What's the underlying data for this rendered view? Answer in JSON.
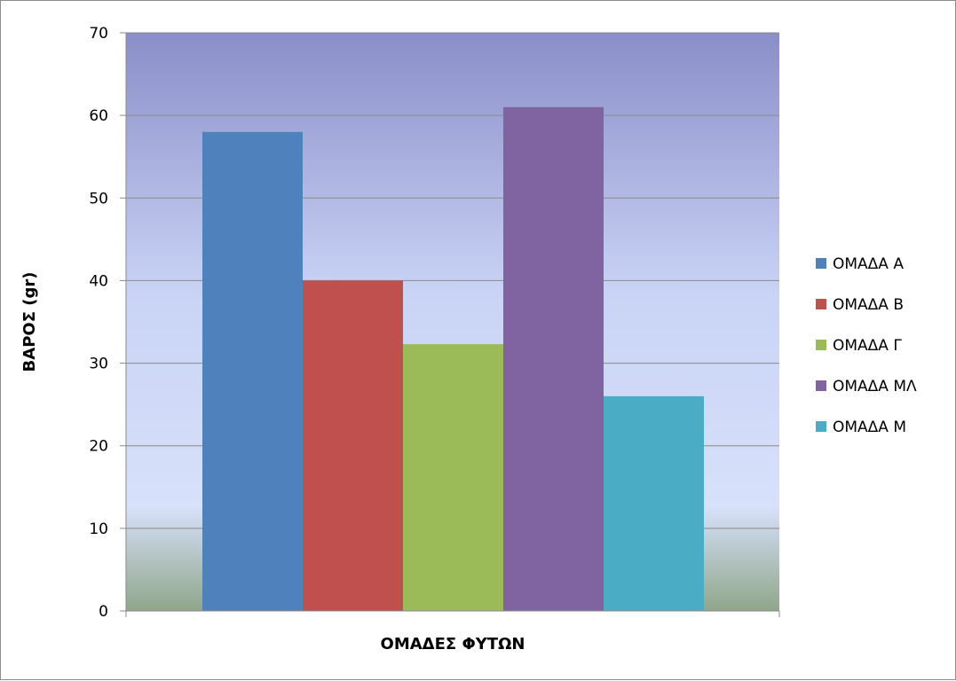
{
  "chart_data": {
    "type": "bar",
    "title": "",
    "xlabel": "ΟΜΑΔΕΣ ΦΥΤΩΝ",
    "ylabel": "ΒΑΡΟΣ (gr)",
    "ylim": [
      0,
      70
    ],
    "yticks": [
      0,
      10,
      20,
      30,
      40,
      50,
      60,
      70
    ],
    "grid": true,
    "legend_position": "right",
    "series": [
      {
        "name": "ΟΜΑΔΑ Α",
        "value": 58,
        "color": "#4F81BD"
      },
      {
        "name": "ΟΜΑΔΑ Β",
        "value": 40,
        "color": "#C0504D"
      },
      {
        "name": "ΟΜΑΔΑ Γ",
        "value": 32.3,
        "color": "#9BBB59"
      },
      {
        "name": "ΟΜΑΔΑ ΜΛ",
        "value": 61,
        "color": "#8064A2"
      },
      {
        "name": "ΟΜΑΔΑ Μ",
        "value": 26,
        "color": "#4BACC6"
      }
    ],
    "background_gradient": [
      "#8A8EC8",
      "#D7E1FA",
      "#8FA68A"
    ]
  }
}
